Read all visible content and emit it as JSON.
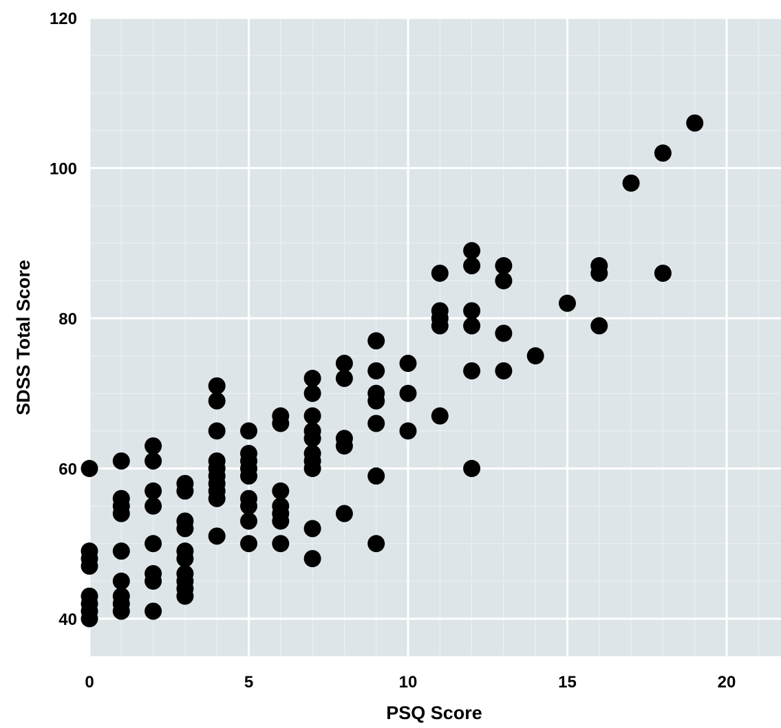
{
  "chart_data": {
    "type": "scatter",
    "title": "",
    "xlabel": "PSQ Score",
    "ylabel": "SDSS Total Score",
    "xlim": [
      0,
      22
    ],
    "ylim": [
      35,
      120
    ],
    "x_ticks": [
      0,
      5,
      10,
      15,
      20
    ],
    "y_ticks": [
      40,
      60,
      80,
      100,
      120
    ],
    "x_tick_labels": [
      "0",
      "5",
      "10",
      "15",
      "20"
    ],
    "y_tick_labels": [
      "40",
      "60",
      "80",
      "100",
      "120"
    ],
    "grid": true,
    "minor_grid": true,
    "legend": "none",
    "colors": {
      "panel_background": "#dde5e8",
      "grid_major": "#ffffff",
      "grid_minor": "#eef2f4",
      "marker": "#000000"
    },
    "series": [
      {
        "points": [
          [
            0,
            60
          ],
          [
            0,
            49
          ],
          [
            0,
            48
          ],
          [
            0,
            47
          ],
          [
            0,
            43
          ],
          [
            0,
            42
          ],
          [
            0,
            41
          ],
          [
            0,
            40
          ],
          [
            1,
            61
          ],
          [
            1,
            56
          ],
          [
            1,
            55
          ],
          [
            1,
            54
          ],
          [
            1,
            49
          ],
          [
            1,
            45
          ],
          [
            1,
            43
          ],
          [
            1,
            42
          ],
          [
            1,
            41
          ],
          [
            2,
            63
          ],
          [
            2,
            61
          ],
          [
            2,
            57
          ],
          [
            2,
            55
          ],
          [
            2,
            50
          ],
          [
            2,
            46
          ],
          [
            2,
            45
          ],
          [
            2,
            41
          ],
          [
            3,
            58
          ],
          [
            3,
            57
          ],
          [
            3,
            53
          ],
          [
            3,
            52
          ],
          [
            3,
            49
          ],
          [
            3,
            48
          ],
          [
            3,
            46
          ],
          [
            3,
            45
          ],
          [
            3,
            44
          ],
          [
            3,
            43
          ],
          [
            4,
            71
          ],
          [
            4,
            69
          ],
          [
            4,
            65
          ],
          [
            4,
            61
          ],
          [
            4,
            60
          ],
          [
            4,
            59
          ],
          [
            4,
            58
          ],
          [
            4,
            57
          ],
          [
            4,
            56
          ],
          [
            4,
            51
          ],
          [
            5,
            65
          ],
          [
            5,
            62
          ],
          [
            5,
            61
          ],
          [
            5,
            60
          ],
          [
            5,
            59
          ],
          [
            5,
            56
          ],
          [
            5,
            55
          ],
          [
            5,
            53
          ],
          [
            5,
            50
          ],
          [
            6,
            67
          ],
          [
            6,
            66
          ],
          [
            6,
            57
          ],
          [
            6,
            55
          ],
          [
            6,
            54
          ],
          [
            6,
            53
          ],
          [
            6,
            50
          ],
          [
            7,
            72
          ],
          [
            7,
            70
          ],
          [
            7,
            67
          ],
          [
            7,
            65
          ],
          [
            7,
            64
          ],
          [
            7,
            62
          ],
          [
            7,
            61
          ],
          [
            7,
            60
          ],
          [
            7,
            52
          ],
          [
            7,
            48
          ],
          [
            8,
            74
          ],
          [
            8,
            72
          ],
          [
            8,
            64
          ],
          [
            8,
            63
          ],
          [
            8,
            54
          ],
          [
            9,
            77
          ],
          [
            9,
            73
          ],
          [
            9,
            70
          ],
          [
            9,
            69
          ],
          [
            9,
            66
          ],
          [
            9,
            59
          ],
          [
            9,
            50
          ],
          [
            10,
            74
          ],
          [
            10,
            70
          ],
          [
            10,
            65
          ],
          [
            11,
            86
          ],
          [
            11,
            81
          ],
          [
            11,
            80
          ],
          [
            11,
            79
          ],
          [
            11,
            67
          ],
          [
            12,
            89
          ],
          [
            12,
            87
          ],
          [
            12,
            81
          ],
          [
            12,
            79
          ],
          [
            12,
            73
          ],
          [
            12,
            60
          ],
          [
            13,
            87
          ],
          [
            13,
            85
          ],
          [
            13,
            78
          ],
          [
            13,
            73
          ],
          [
            14,
            75
          ],
          [
            15,
            82
          ],
          [
            16,
            87
          ],
          [
            16,
            86
          ],
          [
            16,
            79
          ],
          [
            17,
            98
          ],
          [
            18,
            102
          ],
          [
            18,
            86
          ],
          [
            19,
            106
          ]
        ]
      }
    ]
  }
}
